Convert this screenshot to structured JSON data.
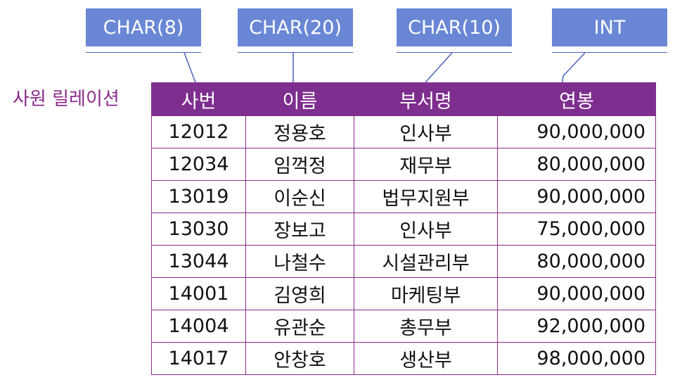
{
  "types": [
    {
      "label": "CHAR(8)"
    },
    {
      "label": "CHAR(20)"
    },
    {
      "label": "CHAR(10)"
    },
    {
      "label": "INT"
    }
  ],
  "relation_name": "사원 릴레이션",
  "columns": [
    "사번",
    "이름",
    "부서명",
    "연봉"
  ],
  "rows": [
    [
      "12012",
      "정용호",
      "인사부",
      "90,000,000"
    ],
    [
      "12034",
      "임꺽정",
      "재무부",
      "80,000,000"
    ],
    [
      "13019",
      "이순신",
      "법무지원부",
      "90,000,000"
    ],
    [
      "13030",
      "장보고",
      "인사부",
      "75,000,000"
    ],
    [
      "13044",
      "나철수",
      "시설관리부",
      "80,000,000"
    ],
    [
      "14001",
      "김영희",
      "마케팅부",
      "90,000,000"
    ],
    [
      "14004",
      "유관순",
      "총무부",
      "92,000,000"
    ],
    [
      "14017",
      "안창호",
      "생산부",
      "98,000,000"
    ]
  ]
}
